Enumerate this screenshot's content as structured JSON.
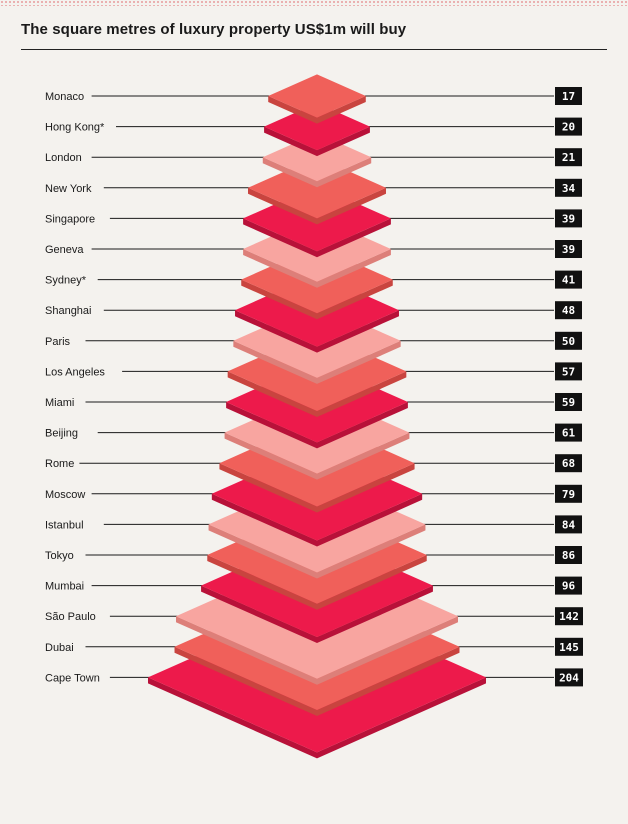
{
  "title": "The square metres of luxury property US$1m will buy",
  "colors": {
    "background": "#f4f2ee",
    "magenta": "#ed1a4b",
    "magenta_side": "#b81139",
    "coral": "#f0605a",
    "coral_side": "#c9443f",
    "pink": "#f8a5a0",
    "pink_side": "#dd7f79",
    "value_box": "#111111"
  },
  "chart_data": {
    "type": "bar",
    "categories": [
      "Monaco",
      "Hong Kong*",
      "London",
      "New York",
      "Singapore",
      "Geneva",
      "Sydney*",
      "Shanghai",
      "Paris",
      "Los Angeles",
      "Miami",
      "Beijing",
      "Rome",
      "Moscow",
      "Istanbul",
      "Tokyo",
      "Mumbai",
      "São Paulo",
      "Dubai",
      "Cape Town"
    ],
    "values": [
      17,
      20,
      21,
      34,
      39,
      39,
      41,
      48,
      50,
      57,
      59,
      61,
      68,
      79,
      84,
      86,
      96,
      142,
      145,
      204
    ],
    "value_labels": [
      "17",
      "20",
      "21",
      "34",
      "39",
      "39",
      "41",
      "48",
      "50",
      "57",
      "59",
      "61",
      "68",
      "79",
      "84",
      "86",
      "96",
      "142",
      "145",
      "204"
    ],
    "colors": [
      "coral",
      "magenta",
      "pink",
      "coral",
      "magenta",
      "pink",
      "coral",
      "magenta",
      "pink",
      "coral",
      "magenta",
      "pink",
      "coral",
      "magenta",
      "pink",
      "coral",
      "magenta",
      "pink",
      "coral",
      "magenta"
    ],
    "title": "The square metres of luxury property US$1m will buy",
    "xlabel": "",
    "ylabel": "",
    "grid": false,
    "legend": "none"
  }
}
